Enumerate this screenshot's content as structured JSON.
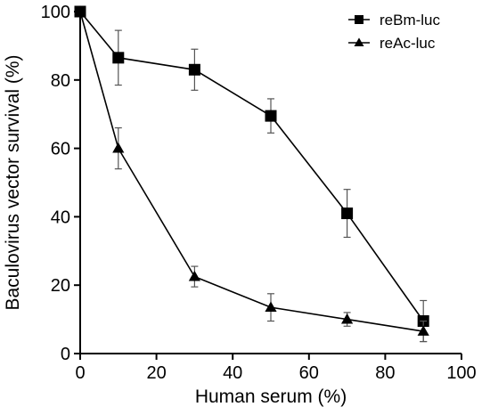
{
  "chart_data": {
    "type": "line",
    "xlabel": "Human serum (%)",
    "ylabel": "Baculovirus vector survival (%)",
    "xlim": [
      0,
      100
    ],
    "ylim": [
      0,
      100
    ],
    "x_ticks": [
      0,
      20,
      40,
      60,
      80,
      100
    ],
    "y_ticks": [
      0,
      20,
      40,
      60,
      80,
      100
    ],
    "grid": false,
    "legend_position": "top-right",
    "series": [
      {
        "name": "reBm-luc",
        "marker": "square",
        "color": "#000000",
        "x": [
          0,
          10,
          30,
          50,
          70,
          90
        ],
        "y": [
          100,
          86.5,
          83,
          69.5,
          41,
          9.5
        ],
        "error": [
          0,
          8,
          6,
          5,
          7,
          6
        ]
      },
      {
        "name": "reAc-luc",
        "marker": "triangle",
        "color": "#000000",
        "x": [
          0,
          10,
          30,
          50,
          70,
          90
        ],
        "y": [
          100,
          60,
          22.5,
          13.5,
          10,
          6.5
        ],
        "error": [
          0,
          6,
          3,
          4,
          2,
          3
        ]
      }
    ]
  }
}
